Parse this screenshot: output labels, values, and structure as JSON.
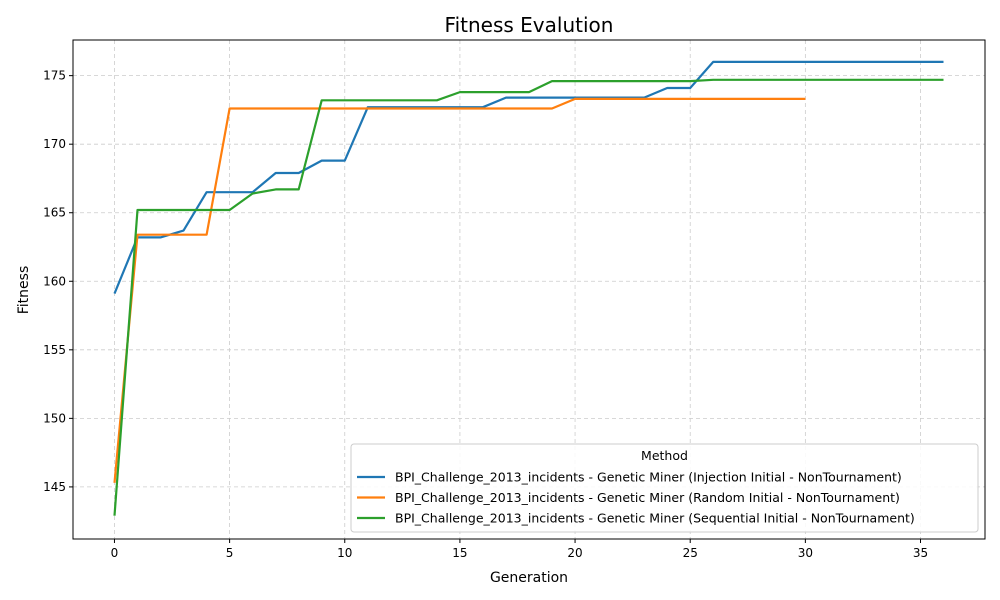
{
  "chart_data": {
    "type": "line",
    "title": "Fitness Evalution",
    "xlabel": "Generation",
    "ylabel": "Fitness",
    "xlim": [
      -1.8,
      37.8
    ],
    "ylim": [
      141.2,
      177.6
    ],
    "xticks": [
      0,
      5,
      10,
      15,
      20,
      25,
      30,
      35
    ],
    "yticks": [
      145,
      150,
      155,
      160,
      165,
      170,
      175
    ],
    "grid": true,
    "legend": {
      "title": "Method",
      "placement": "lower-right"
    },
    "series": [
      {
        "name": "BPI_Challenge_2013_incidents - Genetic Miner (Injection Initial - NonTournament)",
        "color": "#1f77b4",
        "x": [
          0,
          1,
          2,
          3,
          4,
          5,
          6,
          7,
          8,
          9,
          10,
          11,
          12,
          13,
          14,
          15,
          16,
          17,
          18,
          19,
          20,
          21,
          22,
          23,
          24,
          25,
          26,
          27,
          28,
          29,
          30,
          31,
          32,
          33,
          34,
          35,
          36
        ],
        "values": [
          159.1,
          163.2,
          163.2,
          163.7,
          166.5,
          166.5,
          166.5,
          167.9,
          167.9,
          168.8,
          168.8,
          172.7,
          172.7,
          172.7,
          172.7,
          172.7,
          172.7,
          173.4,
          173.4,
          173.4,
          173.4,
          173.4,
          173.4,
          173.4,
          174.1,
          174.1,
          176.0,
          176.0,
          176.0,
          176.0,
          176.0,
          176.0,
          176.0,
          176.0,
          176.0,
          176.0,
          176.0
        ]
      },
      {
        "name": "BPI_Challenge_2013_incidents - Genetic Miner (Random Initial - NonTournament)",
        "color": "#ff7f0e",
        "x": [
          0,
          1,
          2,
          3,
          4,
          5,
          6,
          7,
          8,
          9,
          10,
          11,
          12,
          13,
          14,
          15,
          16,
          17,
          18,
          19,
          20,
          21,
          22,
          23,
          24,
          25,
          26,
          27,
          28,
          29,
          30
        ],
        "values": [
          145.3,
          163.4,
          163.4,
          163.4,
          163.4,
          172.6,
          172.6,
          172.6,
          172.6,
          172.6,
          172.6,
          172.6,
          172.6,
          172.6,
          172.6,
          172.6,
          172.6,
          172.6,
          172.6,
          172.6,
          173.3,
          173.3,
          173.3,
          173.3,
          173.3,
          173.3,
          173.3,
          173.3,
          173.3,
          173.3,
          173.3
        ]
      },
      {
        "name": "BPI_Challenge_2013_incidents - Genetic Miner (Sequential Initial - NonTournament)",
        "color": "#2ca02c",
        "x": [
          0,
          1,
          2,
          3,
          4,
          5,
          6,
          7,
          8,
          9,
          10,
          11,
          12,
          13,
          14,
          15,
          16,
          17,
          18,
          19,
          20,
          21,
          22,
          23,
          24,
          25,
          26,
          27,
          28,
          29,
          30,
          31,
          32,
          33,
          34,
          35,
          36
        ],
        "values": [
          142.9,
          165.2,
          165.2,
          165.2,
          165.2,
          165.2,
          166.4,
          166.7,
          166.7,
          173.2,
          173.2,
          173.2,
          173.2,
          173.2,
          173.2,
          173.8,
          173.8,
          173.8,
          173.8,
          174.6,
          174.6,
          174.6,
          174.6,
          174.6,
          174.6,
          174.6,
          174.7,
          174.7,
          174.7,
          174.7,
          174.7,
          174.7,
          174.7,
          174.7,
          174.7,
          174.7,
          174.7
        ]
      }
    ]
  }
}
